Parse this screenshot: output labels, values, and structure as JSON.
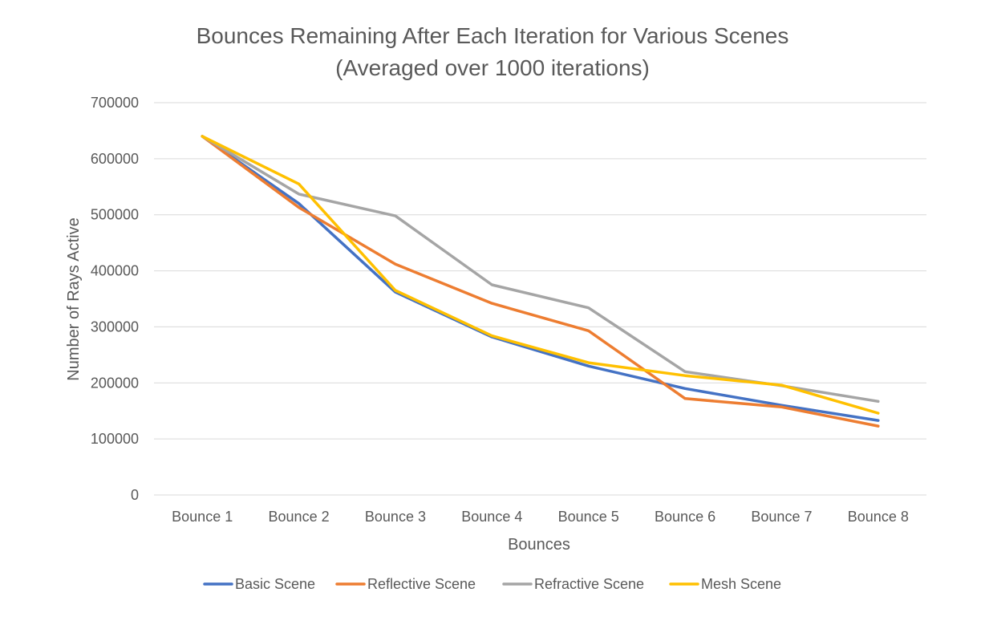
{
  "chart_data": {
    "type": "line",
    "title": [
      "Bounces Remaining After Each Iteration for Various Scenes",
      "(Averaged over 1000 iterations)"
    ],
    "xlabel": "Bounces",
    "ylabel": "Number of Rays Active",
    "ylim": [
      0,
      700000
    ],
    "yticks": [
      "0",
      "100000",
      "200000",
      "300000",
      "400000",
      "500000",
      "600000",
      "700000"
    ],
    "grid": true,
    "legend_position": "bottom",
    "categories": [
      "Bounce 1",
      "Bounce 2",
      "Bounce 3",
      "Bounce 4",
      "Bounce 5",
      "Bounce 6",
      "Bounce 7",
      "Bounce 8"
    ],
    "series": [
      {
        "name": "Basic Scene",
        "color": "#4472c4",
        "values": [
          640000,
          520000,
          362000,
          282000,
          230000,
          190000,
          160000,
          133000
        ]
      },
      {
        "name": "Reflective Scene",
        "color": "#ed7d31",
        "values": [
          640000,
          513000,
          412000,
          342000,
          293000,
          172000,
          157000,
          123000
        ]
      },
      {
        "name": "Refractive Scene",
        "color": "#a5a5a5",
        "values": [
          640000,
          537000,
          498000,
          375000,
          334000,
          220000,
          195000,
          167000
        ]
      },
      {
        "name": "Mesh Scene",
        "color": "#ffc000",
        "values": [
          640000,
          555000,
          365000,
          284000,
          236000,
          213000,
          196000,
          146000
        ]
      }
    ]
  }
}
